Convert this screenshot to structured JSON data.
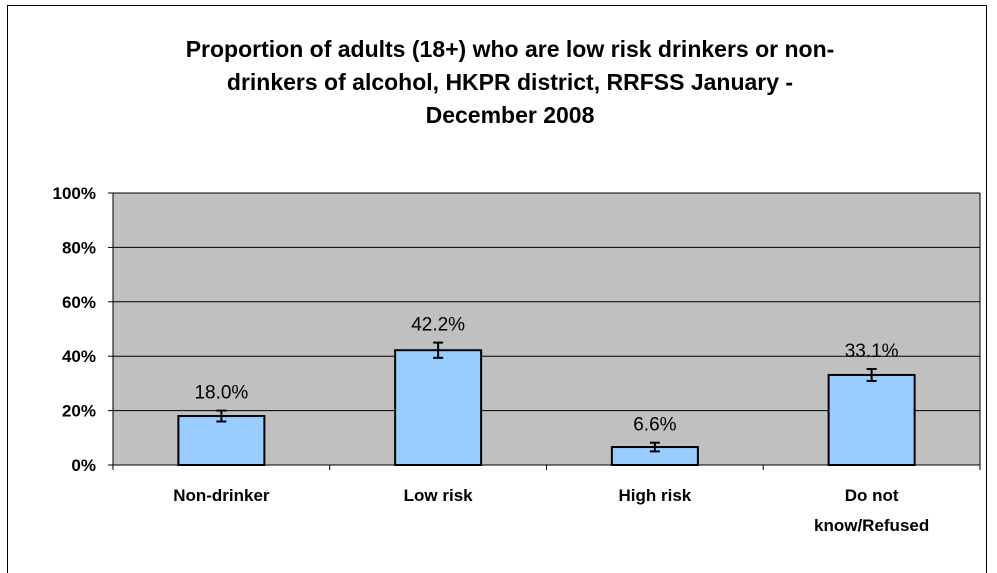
{
  "chart_data": {
    "type": "bar",
    "title": "Proportion of adults (18+) who are low risk drinkers or non-drinkers of alcohol, HKPR district, RRFSS January - December 2008",
    "title_lines": [
      "Proportion of adults (18+) who are low risk drinkers or non-",
      "drinkers of alcohol, HKPR district, RRFSS January -",
      "December 2008"
    ],
    "categories": [
      [
        "Non-drinker"
      ],
      [
        "Low risk"
      ],
      [
        "High risk"
      ],
      [
        "Do not",
        "know/Refused"
      ]
    ],
    "values": [
      18.0,
      42.2,
      6.6,
      33.1
    ],
    "data_labels": [
      "18.0%",
      "42.2%",
      "6.6%",
      "33.1%"
    ],
    "error_bars": [
      [
        16.0,
        20.0
      ],
      [
        39.4,
        45.0
      ],
      [
        5.0,
        8.2
      ],
      [
        30.9,
        35.3
      ]
    ],
    "ylim": [
      0,
      100
    ],
    "yticks": [
      0,
      20,
      40,
      60,
      80,
      100
    ],
    "ytick_labels": [
      "0%",
      "20%",
      "40%",
      "60%",
      "80%",
      "100%"
    ],
    "xlabel": "",
    "ylabel": "",
    "grid": true,
    "legend": "none",
    "colors": {
      "plot_background": "#c0c0c0",
      "bar_fill": "#99ccff",
      "bar_stroke": "#000000",
      "gridline": "#000000"
    }
  }
}
